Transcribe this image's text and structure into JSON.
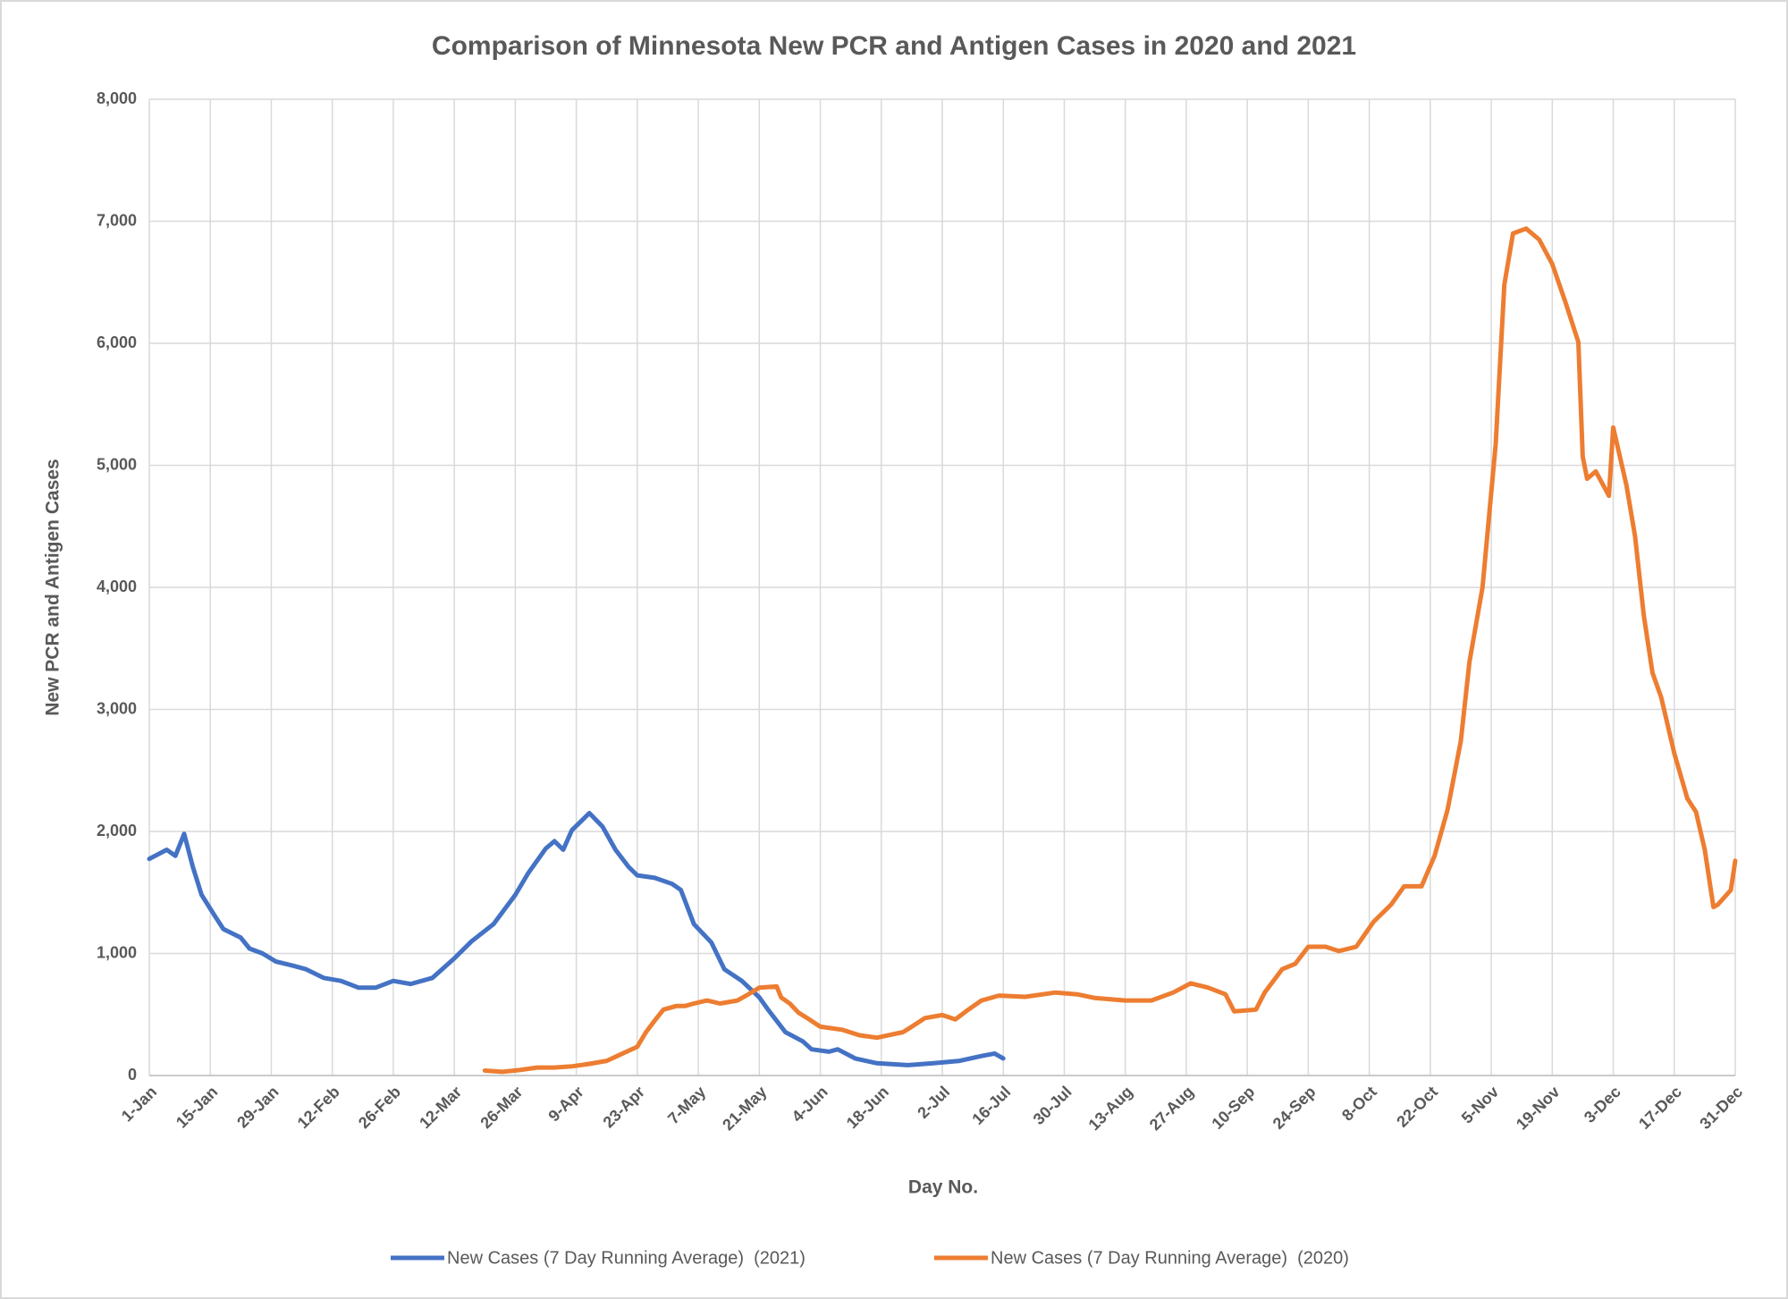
{
  "chart_data": {
    "type": "line",
    "title": "Comparison of Minnesota New PCR and Antigen Cases in 2020 and 2021",
    "xlabel": "Day No.",
    "ylabel": "New PCR and Antigen Cases",
    "xlim": [
      1,
      365
    ],
    "xticks": [
      {
        "value": 1,
        "label": "1-Jan"
      },
      {
        "value": 15,
        "label": "15-Jan"
      },
      {
        "value": 29,
        "label": "29-Jan"
      },
      {
        "value": 43,
        "label": "12-Feb"
      },
      {
        "value": 57,
        "label": "26-Feb"
      },
      {
        "value": 71,
        "label": "12-Mar"
      },
      {
        "value": 85,
        "label": "26-Mar"
      },
      {
        "value": 99,
        "label": "9-Apr"
      },
      {
        "value": 113,
        "label": "23-Apr"
      },
      {
        "value": 127,
        "label": "7-May"
      },
      {
        "value": 141,
        "label": "21-May"
      },
      {
        "value": 155,
        "label": "4-Jun"
      },
      {
        "value": 169,
        "label": "18-Jun"
      },
      {
        "value": 183,
        "label": "2-Jul"
      },
      {
        "value": 197,
        "label": "16-Jul"
      },
      {
        "value": 211,
        "label": "30-Jul"
      },
      {
        "value": 225,
        "label": "13-Aug"
      },
      {
        "value": 239,
        "label": "27-Aug"
      },
      {
        "value": 253,
        "label": "10-Sep"
      },
      {
        "value": 267,
        "label": "24-Sep"
      },
      {
        "value": 281,
        "label": "8-Oct"
      },
      {
        "value": 295,
        "label": "22-Oct"
      },
      {
        "value": 309,
        "label": "5-Nov"
      },
      {
        "value": 323,
        "label": "19-Nov"
      },
      {
        "value": 337,
        "label": "3-Dec"
      },
      {
        "value": 351,
        "label": "17-Dec"
      },
      {
        "value": 365,
        "label": "31-Dec"
      }
    ],
    "ylim": [
      0,
      8000
    ],
    "yticks": [
      0,
      {
        "value": 1000,
        "label": "1,000"
      },
      {
        "value": 2000,
        "label": "2,000"
      },
      {
        "value": 3000,
        "label": "3,000"
      },
      {
        "value": 4000,
        "label": "4,000"
      },
      {
        "value": 5000,
        "label": "5,000"
      },
      {
        "value": 6000,
        "label": "6,000"
      },
      {
        "value": 7000,
        "label": "7,000"
      },
      {
        "value": 8000,
        "label": "8,000"
      }
    ],
    "grid": true,
    "legend": "bottom",
    "series": [
      {
        "name": "New Cases (7 Day Running Average)  (2021)",
        "color": "#4472c4",
        "x": [
          1,
          5,
          7,
          9,
          11,
          13,
          16,
          18,
          22,
          24,
          27,
          30,
          34,
          37,
          41,
          45,
          49,
          53,
          57,
          61,
          66,
          71,
          75,
          80,
          85,
          88,
          92,
          94,
          96,
          98,
          100,
          102,
          105,
          108,
          111,
          113,
          117,
          121,
          123,
          126,
          130,
          133,
          137,
          141,
          143,
          147,
          151,
          153,
          157,
          159,
          163,
          168,
          175,
          181,
          187,
          192,
          195,
          197
        ],
        "values": [
          1775,
          1850,
          1800,
          1980,
          1710,
          1480,
          1310,
          1200,
          1130,
          1040,
          1000,
          935,
          900,
          870,
          800,
          775,
          720,
          720,
          775,
          750,
          800,
          960,
          1100,
          1240,
          1480,
          1660,
          1860,
          1920,
          1850,
          2010,
          2080,
          2150,
          2040,
          1850,
          1710,
          1640,
          1620,
          1570,
          1520,
          1240,
          1090,
          870,
          775,
          640,
          540,
          355,
          280,
          215,
          195,
          215,
          140,
          100,
          85,
          100,
          120,
          160,
          180,
          140
        ]
      },
      {
        "name": "New Cases (7 Day Running Average)  (2020)",
        "color": "#ed7d31",
        "x": [
          78,
          82,
          86,
          90,
          94,
          98,
          102,
          106,
          109,
          113,
          115,
          117,
          119,
          122,
          124,
          126,
          129,
          132,
          136,
          138,
          141,
          145,
          146,
          148,
          150,
          152,
          155,
          160,
          164,
          168,
          174,
          176,
          179,
          183,
          186,
          189,
          192,
          196,
          202,
          209,
          214,
          218,
          225,
          231,
          236,
          240,
          244,
          248,
          250,
          255,
          257,
          261,
          264,
          267,
          271,
          274,
          278,
          282,
          286,
          289,
          293,
          296,
          299,
          302,
          304,
          307,
          310,
          312,
          314,
          317,
          320,
          323,
          326,
          329,
          330,
          331,
          333,
          336,
          337,
          340,
          342,
          344,
          346,
          348,
          351,
          354,
          356,
          358,
          360,
          361,
          364,
          365
        ],
        "values": [
          40,
          30,
          45,
          65,
          65,
          75,
          95,
          120,
          170,
          235,
          355,
          450,
          540,
          570,
          570,
          590,
          615,
          590,
          615,
          655,
          720,
          730,
          640,
          590,
          515,
          470,
          400,
          375,
          330,
          310,
          355,
          400,
          470,
          495,
          460,
          540,
          615,
          655,
          645,
          680,
          665,
          635,
          615,
          615,
          680,
          755,
          720,
          665,
          525,
          540,
          680,
          870,
          915,
          1055,
          1055,
          1020,
          1055,
          1260,
          1400,
          1550,
          1550,
          1800,
          2180,
          2740,
          3390,
          4000,
          5170,
          6480,
          6900,
          6940,
          6850,
          6650,
          6340,
          6010,
          5070,
          4890,
          4950,
          4750,
          5310,
          4840,
          4420,
          3770,
          3300,
          3100,
          2640,
          2270,
          2160,
          1850,
          1380,
          1400,
          1520,
          1760
        ]
      }
    ]
  }
}
